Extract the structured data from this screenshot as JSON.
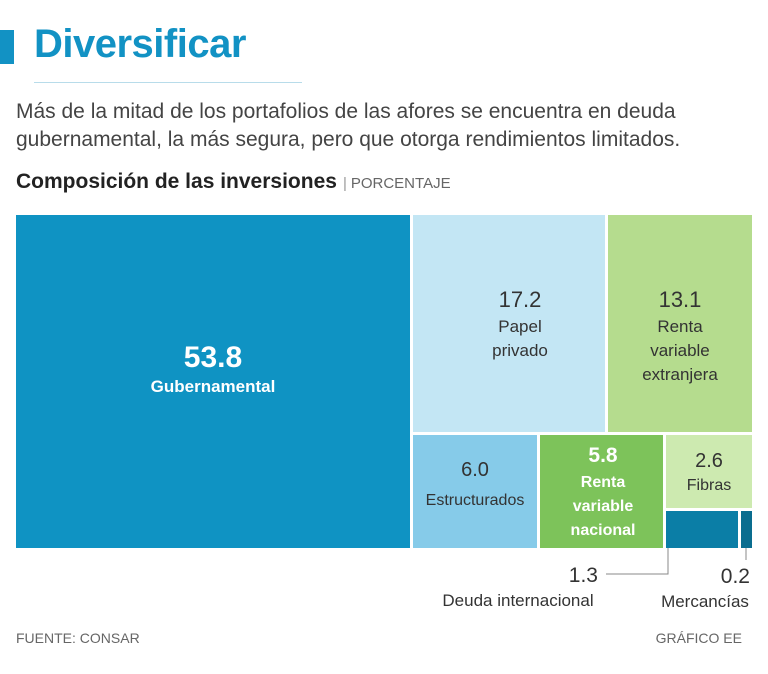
{
  "header": {
    "title": "Diversificar",
    "subtitle": "Más de la mitad de los portafolios de las afores se encuentra en deuda gubernamental, la más segura, pero que otorga rendimientos limitados.",
    "chart_heading": "Composición de las inversiones",
    "chart_unit": "PORCENTAJE",
    "separator": "|"
  },
  "footer": {
    "source": "FUENTE: CONSAR",
    "credit": "GRÁFICO EE"
  },
  "colors": {
    "accent": "#1292c4",
    "gubernamental": "#0f93c3",
    "papel_privado": "#c3e6f4",
    "renta_extranjera": "#b5dc8e",
    "estructurados": "#86cbe9",
    "renta_nacional": "#7dc35a",
    "fibras": "#cdeab0",
    "deuda_internacional": "#0b7ea6",
    "mercancias": "#0a6d8f"
  },
  "chart_data": {
    "type": "treemap",
    "title": "Composición de las inversiones",
    "unit": "PORCENTAJE",
    "items": [
      {
        "value": "53.8",
        "lines": [
          "Gubernamental"
        ]
      },
      {
        "value": "17.2",
        "lines": [
          "Papel",
          "privado"
        ]
      },
      {
        "value": "13.1",
        "lines": [
          "Renta",
          "variable",
          "extranjera"
        ]
      },
      {
        "value": "6.0",
        "lines": [
          "Estructurados"
        ]
      },
      {
        "value": "5.8",
        "lines": [
          "Renta",
          "variable",
          "nacional"
        ]
      },
      {
        "value": "2.6",
        "lines": [
          "Fibras"
        ]
      },
      {
        "value": "1.3",
        "lines": [
          "Deuda internacional"
        ]
      },
      {
        "value": "0.2",
        "lines": [
          "Mercancías"
        ]
      }
    ]
  }
}
